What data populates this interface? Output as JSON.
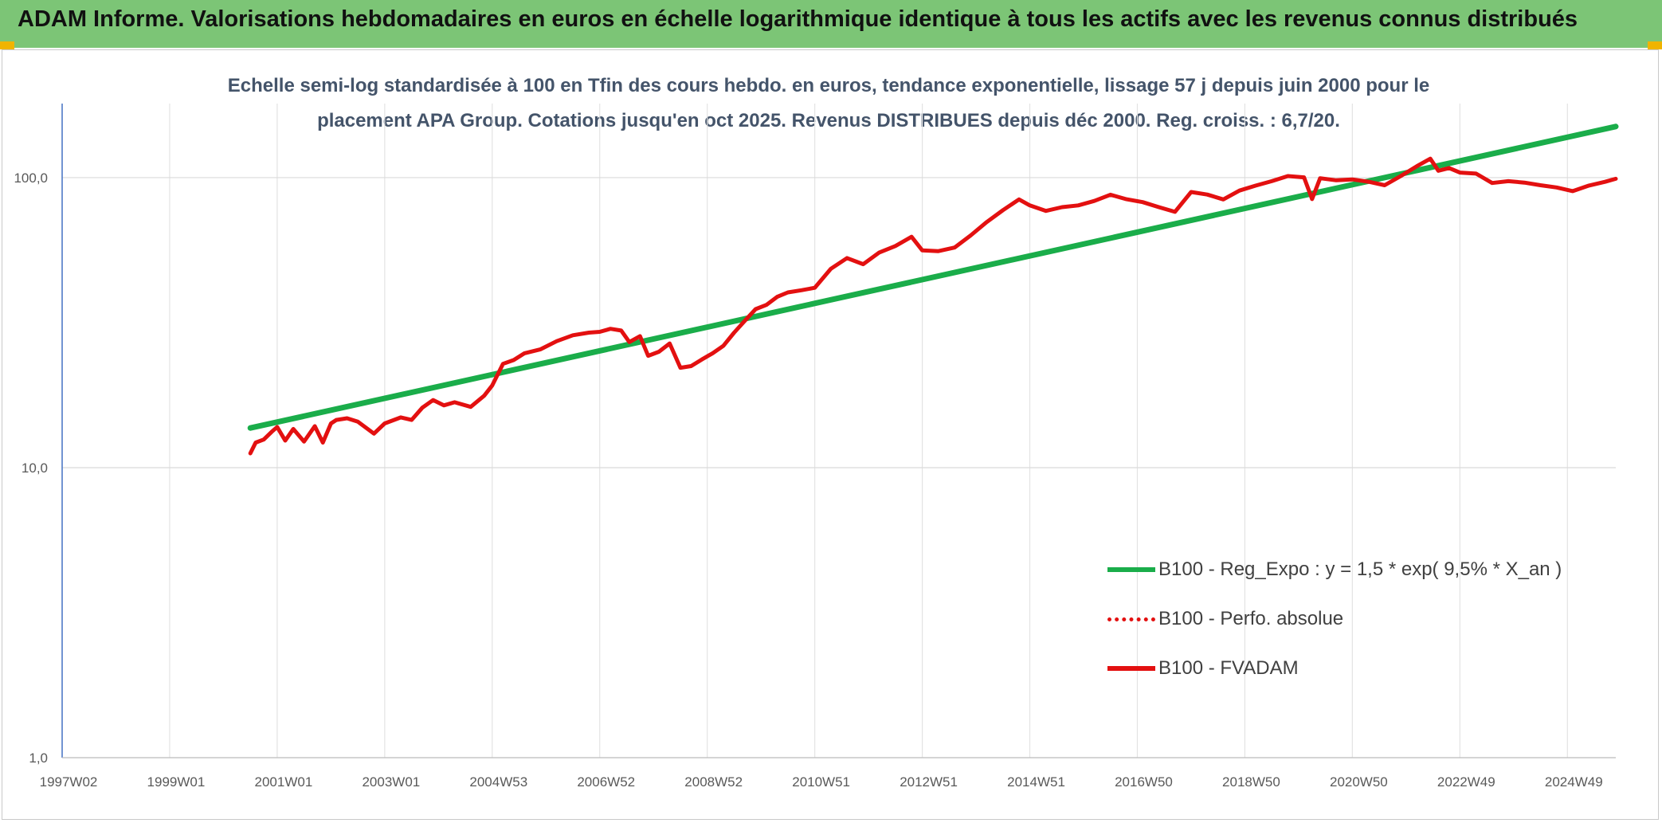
{
  "header": {
    "title": "ADAM Informe. Valorisations hebdomadaires en euros en échelle logarithmique identique à tous les actifs avec les revenus connus distribués"
  },
  "chart_data": {
    "type": "line",
    "subtitle_lines": [
      "Echelle semi-log standardisée à 100 en Tfin des cours hebdo. en euros, tendance exponentielle, lissage 57 j depuis juin 2000 pour le",
      "placement APA Group. Cotations jusqu'en oct 2025. Revenus DISTRIBUES depuis déc 2000. Reg. croiss. : 6,7/20."
    ],
    "y_scale": "log",
    "ylim": [
      1,
      180
    ],
    "yticks": [
      1,
      10,
      100
    ],
    "ytick_labels": [
      "1,0",
      "10,0",
      "100,0"
    ],
    "xlim": [
      1997.0,
      2025.9
    ],
    "xtick_positions": [
      1997.0,
      1999.0,
      2001.0,
      2003.0,
      2005.0,
      2007.0,
      2009.0,
      2011.0,
      2013.0,
      2015.0,
      2017.0,
      2019.0,
      2021.0,
      2023.0,
      2025.0
    ],
    "xtick_labels": [
      "1997W02",
      "1999W01",
      "2001W01",
      "2003W01",
      "2004W53",
      "2006W52",
      "2008W52",
      "2010W51",
      "2012W51",
      "2014W51",
      "2016W50",
      "2018W50",
      "2020W50",
      "2022W49",
      "2024W49"
    ],
    "grid": true,
    "legend_position": "bottom-right",
    "series": [
      {
        "name": "B100 - Reg_Expo : y = 1,5 * exp( 9,5% *  X_an )",
        "color": "#1aad4a",
        "style": "solid",
        "x": [
          2000.5,
          2025.9
        ],
        "y": [
          13.7,
          150
        ]
      },
      {
        "name": "B100 - Perfo. absolue",
        "color": "#e31010",
        "style": "dotted",
        "x": [],
        "y": []
      },
      {
        "name": "B100 - FVADAM",
        "color": "#e31010",
        "style": "solid",
        "x": [
          2000.5,
          2000.6,
          2000.75,
          2000.9,
          2001.0,
          2001.15,
          2001.3,
          2001.5,
          2001.7,
          2001.85,
          2002.0,
          2002.1,
          2002.3,
          2002.5,
          2002.8,
          2003.0,
          2003.3,
          2003.5,
          2003.7,
          2003.9,
          2004.1,
          2004.3,
          2004.6,
          2004.85,
          2005.0,
          2005.2,
          2005.4,
          2005.6,
          2005.9,
          2006.2,
          2006.5,
          2006.8,
          2007.0,
          2007.2,
          2007.4,
          2007.55,
          2007.75,
          2007.9,
          2008.1,
          2008.3,
          2008.5,
          2008.7,
          2008.9,
          2009.1,
          2009.3,
          2009.5,
          2009.7,
          2009.9,
          2010.1,
          2010.3,
          2010.5,
          2010.75,
          2011.0,
          2011.3,
          2011.6,
          2011.9,
          2012.2,
          2012.5,
          2012.8,
          2013.0,
          2013.3,
          2013.6,
          2013.9,
          2014.2,
          2014.5,
          2014.8,
          2015.0,
          2015.3,
          2015.6,
          2015.9,
          2016.2,
          2016.5,
          2016.8,
          2017.1,
          2017.4,
          2017.7,
          2018.0,
          2018.3,
          2018.6,
          2018.9,
          2019.2,
          2019.5,
          2019.8,
          2020.1,
          2020.25,
          2020.4,
          2020.7,
          2021.0,
          2021.3,
          2021.6,
          2021.9,
          2022.2,
          2022.45,
          2022.6,
          2022.8,
          2023.0,
          2023.3,
          2023.6,
          2023.9,
          2024.2,
          2024.5,
          2024.8,
          2025.1,
          2025.4,
          2025.7,
          2025.9
        ],
        "y": [
          11.2,
          12.2,
          12.5,
          13.3,
          13.8,
          12.4,
          13.6,
          12.3,
          13.9,
          12.2,
          14.2,
          14.6,
          14.8,
          14.4,
          13.1,
          14.2,
          14.9,
          14.6,
          16.1,
          17.1,
          16.4,
          16.8,
          16.2,
          17.7,
          19.2,
          22.8,
          23.5,
          24.8,
          25.6,
          27.3,
          28.6,
          29.2,
          29.4,
          30.1,
          29.7,
          27.1,
          28.4,
          24.3,
          25.1,
          26.8,
          22.1,
          22.4,
          23.6,
          24.8,
          26.3,
          29.2,
          32.1,
          35.2,
          36.4,
          38.8,
          40.2,
          40.9,
          41.7,
          48.5,
          52.8,
          50.3,
          55.2,
          58.1,
          62.5,
          56.1,
          55.8,
          57.4,
          63.2,
          70.3,
          77.2,
          84.1,
          80.2,
          76.8,
          79.1,
          80.2,
          83.1,
          87.3,
          84.2,
          82.3,
          79.1,
          76.2,
          89.2,
          87.4,
          84.1,
          90.2,
          93.8,
          97.2,
          101.2,
          100.2,
          84.3,
          99.5,
          97.9,
          98.6,
          96.8,
          94.1,
          101.2,
          109.5,
          116.2,
          105.6,
          107.9,
          104.1,
          103.2,
          95.8,
          97.2,
          96.1,
          94.1,
          92.5,
          89.8,
          93.9,
          96.7,
          99.1
        ]
      }
    ]
  }
}
